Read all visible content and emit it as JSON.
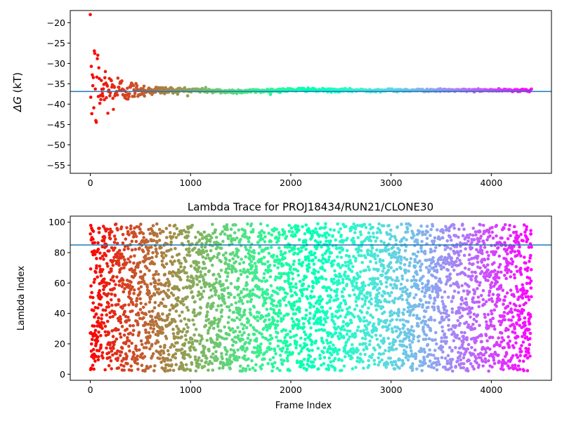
{
  "chart_data": [
    {
      "type": "scatter",
      "title": "",
      "xlabel": "",
      "ylabel_symbol": "ΔG",
      "ylabel_unit": " (kT)",
      "xlim": [
        -200,
        4600
      ],
      "ylim": [
        -57,
        -17
      ],
      "xticks": [
        0,
        1000,
        2000,
        3000,
        4000
      ],
      "yticks": [
        -20,
        -25,
        -30,
        -35,
        -40,
        -45,
        -50,
        -55
      ],
      "hline": -36.9,
      "hline_color": "#1f77b4",
      "colormap": "rainbow",
      "x_range": [
        0,
        4400
      ],
      "initial_value": -20,
      "final_value": -36.6,
      "early_spread": 17,
      "grid": false
    },
    {
      "type": "scatter",
      "title": "Lambda Trace for PROJ18434/RUN21/CLONE30",
      "xlabel": "Frame Index",
      "ylabel": "Lambda Index",
      "xlim": [
        -200,
        4600
      ],
      "ylim": [
        -4,
        104
      ],
      "xticks": [
        0,
        1000,
        2000,
        3000,
        4000
      ],
      "yticks": [
        0,
        20,
        40,
        60,
        80,
        100
      ],
      "hline": 85,
      "hline_color": "#1f77b4",
      "colormap": "rainbow",
      "x_range": [
        0,
        4400
      ],
      "y_range": [
        2,
        99
      ],
      "grid": false
    }
  ]
}
